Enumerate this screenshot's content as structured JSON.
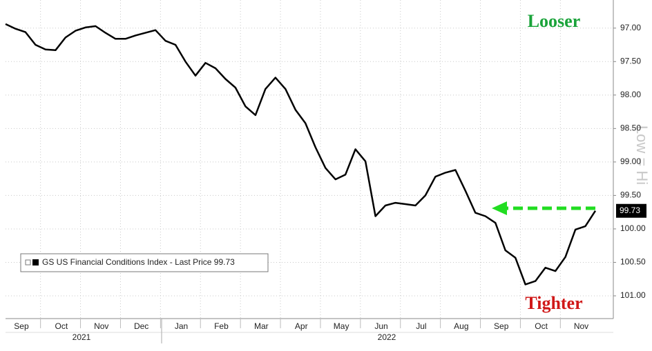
{
  "chart_data": {
    "type": "line",
    "categories": [
      null,
      null,
      "Sep",
      null,
      null,
      null,
      "Oct",
      null,
      null,
      null,
      "Nov",
      null,
      null,
      null,
      "Dec",
      null,
      null,
      null,
      "Jan",
      null,
      null,
      null,
      "Feb",
      null,
      null,
      null,
      "Mar",
      null,
      null,
      null,
      "Apr",
      null,
      null,
      null,
      "May",
      null,
      null,
      null,
      "Jun",
      null,
      null,
      null,
      "Jul",
      null,
      null,
      null,
      "Aug",
      null,
      null,
      null,
      "Sep",
      null,
      null,
      null,
      "Oct",
      null,
      null,
      null,
      "Nov",
      null
    ],
    "x_groups": [
      "2021",
      "2022"
    ],
    "series": [
      {
        "name": "GS US Financial Conditions Index - Last Price 99.73",
        "color": "#000000",
        "values": [
          96.94,
          97.01,
          97.06,
          97.25,
          97.32,
          97.33,
          97.14,
          97.04,
          96.99,
          96.97,
          97.07,
          97.16,
          97.16,
          97.11,
          97.07,
          97.03,
          97.19,
          97.25,
          97.5,
          97.71,
          97.52,
          97.6,
          97.76,
          97.89,
          98.17,
          98.3,
          97.91,
          97.74,
          97.91,
          98.22,
          98.42,
          98.78,
          99.09,
          99.26,
          99.19,
          98.81,
          98.99,
          99.81,
          99.65,
          99.61,
          99.63,
          99.65,
          99.5,
          99.22,
          99.16,
          99.12,
          99.43,
          99.76,
          99.81,
          99.91,
          100.32,
          100.43,
          100.83,
          100.78,
          100.58,
          100.63,
          100.42,
          100.01,
          99.96,
          99.73
        ]
      }
    ],
    "ylim": [
      101.34,
      96.58
    ],
    "yticks": [
      {
        "value": 97,
        "label": "97.00"
      },
      {
        "value": 97.5,
        "label": "97.50"
      },
      {
        "value": 98,
        "label": "98.00"
      },
      {
        "value": 98.5,
        "label": "98.50"
      },
      {
        "value": 99,
        "label": "99.00"
      },
      {
        "value": 99.5,
        "label": "99.50"
      },
      {
        "value": 100,
        "label": "100.00"
      },
      {
        "value": 100.5,
        "label": "100.50"
      },
      {
        "value": 101,
        "label": "101.00"
      }
    ],
    "grid": true,
    "annotations": {
      "top": "Looser",
      "bottom": "Tighter",
      "axis_note": "Low = Hi"
    }
  }
}
